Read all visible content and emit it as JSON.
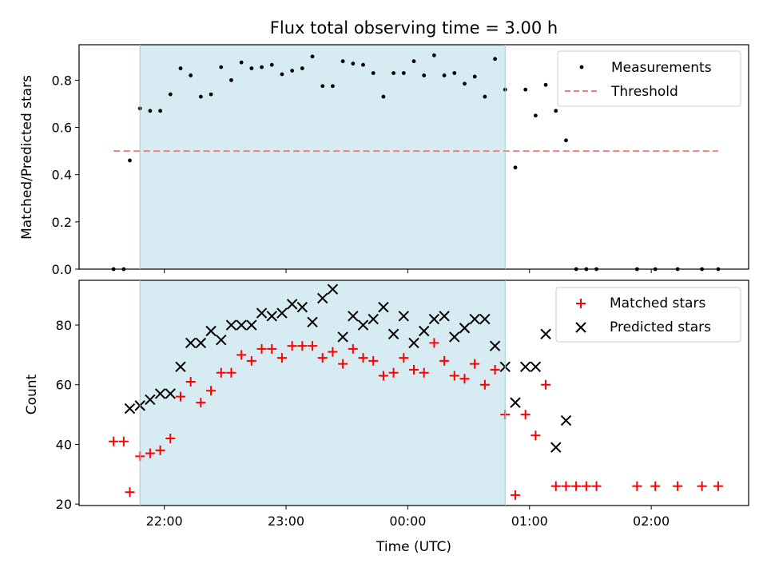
{
  "chart_data": {
    "type": "scatter",
    "title": "Flux total observing time = 3.00 h",
    "xlabel": "Time (UTC)",
    "x_ticks": [
      "22:00",
      "23:00",
      "00:00",
      "01:00",
      "02:00"
    ],
    "x_range_minutes_from_22_00": [
      -42,
      288
    ],
    "shaded_interval": [
      "21:48",
      "00:48"
    ],
    "shade_color": "#add8e6",
    "panels": [
      {
        "ylabel": "Matched/Predicted stars",
        "ylim": [
          0,
          0.95
        ],
        "y_ticks": [
          "0.0",
          "0.2",
          "0.4",
          "0.6",
          "0.8"
        ],
        "legend": {
          "placement": "top-right",
          "items": [
            "Measurements",
            "Threshold"
          ]
        },
        "threshold": {
          "value": 0.5,
          "from": "21:35",
          "to": "02:33",
          "color": "#f08080"
        },
        "series": [
          {
            "name": "Measurements",
            "marker": "dot",
            "color": "#000000",
            "x": [
              "21:35",
              "21:40",
              "21:43",
              "21:48",
              "21:53",
              "21:58",
              "22:03",
              "22:08",
              "22:13",
              "22:18",
              "22:23",
              "22:28",
              "22:33",
              "22:38",
              "22:43",
              "22:48",
              "22:53",
              "22:58",
              "23:03",
              "23:08",
              "23:13",
              "23:18",
              "23:23",
              "23:28",
              "23:33",
              "23:38",
              "23:43",
              "23:48",
              "23:53",
              "23:58",
              "00:03",
              "00:08",
              "00:13",
              "00:18",
              "00:23",
              "00:28",
              "00:33",
              "00:38",
              "00:43",
              "00:48",
              "00:53",
              "00:58",
              "01:03",
              "01:08",
              "01:13",
              "01:18",
              "01:23",
              "01:28",
              "01:33",
              "01:53",
              "02:02",
              "02:13",
              "02:25",
              "02:33"
            ],
            "y": [
              0.0,
              0.0,
              0.46,
              0.68,
              0.67,
              0.67,
              0.74,
              0.85,
              0.82,
              0.73,
              0.74,
              0.855,
              0.8,
              0.875,
              0.85,
              0.855,
              0.865,
              0.825,
              0.84,
              0.85,
              0.9,
              0.775,
              0.775,
              0.88,
              0.87,
              0.865,
              0.83,
              0.73,
              0.83,
              0.83,
              0.88,
              0.82,
              0.905,
              0.82,
              0.83,
              0.785,
              0.815,
              0.73,
              0.89,
              0.76,
              0.43,
              0.76,
              0.65,
              0.78,
              0.67,
              0.545,
              0.0,
              0.0,
              0.0,
              0.0,
              0.0,
              0.0,
              0.0,
              0.0
            ]
          }
        ]
      },
      {
        "ylabel": "Count",
        "ylim": [
          19.5,
          95
        ],
        "y_ticks": [
          "20",
          "40",
          "60",
          "80"
        ],
        "legend": {
          "placement": "top-right",
          "items": [
            "Matched stars",
            "Predicted stars"
          ]
        },
        "series": [
          {
            "name": "Matched stars",
            "marker": "plus",
            "color": "#ff0000",
            "x": [
              "21:35",
              "21:40",
              "21:43",
              "21:48",
              "21:53",
              "21:58",
              "22:03",
              "22:08",
              "22:13",
              "22:18",
              "22:23",
              "22:28",
              "22:33",
              "22:38",
              "22:43",
              "22:48",
              "22:53",
              "22:58",
              "23:03",
              "23:08",
              "23:13",
              "23:18",
              "23:23",
              "23:28",
              "23:33",
              "23:38",
              "23:43",
              "23:48",
              "23:53",
              "23:58",
              "00:03",
              "00:08",
              "00:13",
              "00:18",
              "00:23",
              "00:28",
              "00:33",
              "00:38",
              "00:43",
              "00:48",
              "00:53",
              "00:58",
              "01:03",
              "01:08",
              "01:13",
              "01:18",
              "01:23",
              "01:28",
              "01:33",
              "01:53",
              "02:02",
              "02:13",
              "02:25",
              "02:33"
            ],
            "y": [
              41,
              41,
              24,
              36,
              37,
              38,
              42,
              56,
              61,
              54,
              58,
              64,
              64,
              70,
              68,
              72,
              72,
              69,
              73,
              73,
              73,
              69,
              71,
              67,
              72,
              69,
              68,
              63,
              64,
              69,
              65,
              64,
              74,
              68,
              63,
              62,
              67,
              60,
              65,
              50,
              23,
              50,
              43,
              60,
              26,
              26,
              26,
              26,
              26,
              26,
              26,
              26,
              26,
              26
            ]
          },
          {
            "name": "Predicted stars",
            "marker": "x",
            "color": "#000000",
            "x": [
              "21:43",
              "21:48",
              "21:53",
              "21:58",
              "22:03",
              "22:08",
              "22:13",
              "22:18",
              "22:23",
              "22:28",
              "22:33",
              "22:38",
              "22:43",
              "22:48",
              "22:53",
              "22:58",
              "23:03",
              "23:08",
              "23:13",
              "23:18",
              "23:23",
              "23:28",
              "23:33",
              "23:38",
              "23:43",
              "23:48",
              "23:53",
              "23:58",
              "00:03",
              "00:08",
              "00:13",
              "00:18",
              "00:23",
              "00:28",
              "00:33",
              "00:38",
              "00:43",
              "00:48",
              "00:53",
              "00:58",
              "01:03",
              "01:08",
              "01:13",
              "01:18"
            ],
            "y": [
              52,
              53,
              55,
              57,
              57,
              66,
              74,
              74,
              78,
              75,
              80,
              80,
              80,
              84,
              83,
              84,
              87,
              86,
              81,
              89,
              92,
              76,
              83,
              80,
              82,
              86,
              77,
              83,
              74,
              78,
              82,
              83,
              76,
              79,
              82,
              82,
              73,
              66,
              54,
              66,
              66,
              77,
              39,
              48
            ]
          }
        ]
      }
    ]
  }
}
